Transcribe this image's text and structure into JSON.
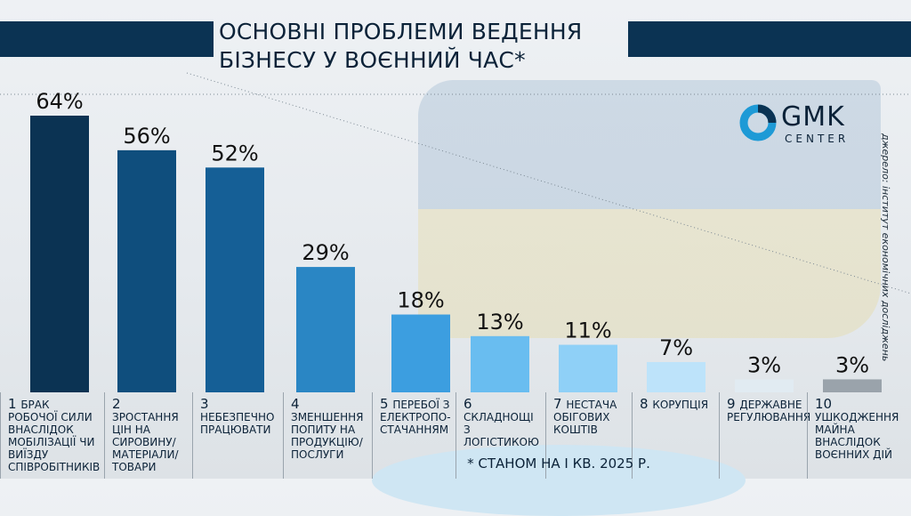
{
  "title_line1": "ОСНОВНІ ПРОБЛЕМИ ВЕДЕННЯ",
  "title_line2": "БІЗНЕСУ У ВОЄННИЙ ЧАС*",
  "logo": {
    "main": "GMK",
    "sub": "CENTER"
  },
  "source": "джерело: інститут економічних досліджень",
  "footnote": "* СТАНОМ НА І КВ. 2025 Р.",
  "chart_data": {
    "type": "bar",
    "title": "ОСНОВНІ ПРОБЛЕМИ ВЕДЕННЯ БІЗНЕСУ У ВОЄННИЙ ЧАС*",
    "categories": [
      "брак робочої сили внаслідок мобілізації чи виїзду співробітників",
      "зростання цін на сировину/ матеріали/ товари",
      "небезпечно працювати",
      "зменшення попиту на продукцію/ послуги",
      "перебої з електропо- стачанням",
      "складнощі з логістикою",
      "нестача обігових коштів",
      "корупція",
      "державне регулювання",
      "ушкодження майна внаслідок воєнних дій"
    ],
    "numbers": [
      "1",
      "2",
      "3",
      "4",
      "5",
      "6",
      "7",
      "8",
      "9",
      "10"
    ],
    "values": [
      64,
      56,
      52,
      29,
      18,
      13,
      11,
      7,
      3,
      3
    ],
    "value_labels": [
      "64%",
      "56%",
      "52%",
      "29%",
      "18%",
      "13%",
      "11%",
      "7%",
      "3%",
      "3%"
    ],
    "colors": [
      "#0b3353",
      "#0f4e7d",
      "#155f96",
      "#2a86c4",
      "#3c9ee0",
      "#69bdf0",
      "#8fd0f7",
      "#bde3fa",
      "#e1ebf2",
      "#9aa3ab"
    ],
    "ylim": [
      0,
      64
    ]
  }
}
